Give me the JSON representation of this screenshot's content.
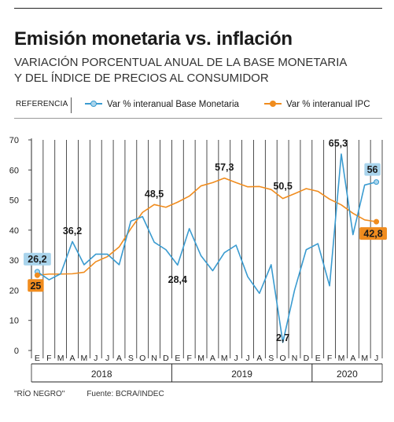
{
  "header": {
    "title": "Emisión monetaria vs. inflación",
    "subtitle_line1": "VARIACIÓN PORCENTUAL ANUAL DE LA BASE MONETARIA",
    "subtitle_line2": "Y DEL ÍNDICE DE PRECIOS AL CONSUMIDOR"
  },
  "legend": {
    "reference_label": "REFERENCIA",
    "items": [
      {
        "label": "Var % interanual Base Monetaria",
        "color": "#3a9bd0",
        "dot": "#a9d4ec"
      },
      {
        "label": "Var % interanual IPC",
        "color": "#f08c1e",
        "dot": "#f08c1e"
      }
    ]
  },
  "footer": {
    "credit": "\"RÍO NEGRO\"",
    "source": "Fuente: BCRA/INDEC"
  },
  "chart_data": {
    "type": "line",
    "ylim": [
      0,
      70
    ],
    "yticks": [
      0,
      10,
      20,
      30,
      40,
      50,
      60,
      70
    ],
    "grid": "vertical lines at each month",
    "categories": [
      "E",
      "F",
      "M",
      "A",
      "M",
      "J",
      "J",
      "A",
      "S",
      "O",
      "N",
      "D",
      "E",
      "F",
      "M",
      "A",
      "M",
      "J",
      "J",
      "A",
      "S",
      "O",
      "N",
      "D",
      "E",
      "F",
      "M",
      "A",
      "M",
      "J"
    ],
    "years": [
      {
        "label": "2018",
        "start": 0,
        "end": 11
      },
      {
        "label": "2019",
        "start": 12,
        "end": 23
      },
      {
        "label": "2020",
        "start": 24,
        "end": 29
      }
    ],
    "series": [
      {
        "name": "Var % interanual Base Monetaria",
        "color": "#3a9bd0",
        "values": [
          26.2,
          23.5,
          25.5,
          36.2,
          28.5,
          32.0,
          32.0,
          28.5,
          43.0,
          44.5,
          36.0,
          33.5,
          28.4,
          40.5,
          31.5,
          26.5,
          32.5,
          35.0,
          24.5,
          19.0,
          28.5,
          2.7,
          20.0,
          33.5,
          35.5,
          21.5,
          65.3,
          38.5,
          55.0,
          56.0
        ]
      },
      {
        "name": "Var % interanual IPC",
        "color": "#f08c1e",
        "values": [
          25.0,
          25.4,
          25.4,
          25.5,
          26.0,
          29.5,
          31.2,
          34.4,
          40.5,
          45.9,
          48.5,
          47.6,
          49.3,
          51.3,
          54.7,
          55.8,
          57.3,
          55.8,
          54.4,
          54.5,
          53.5,
          50.5,
          52.1,
          53.8,
          52.9,
          50.3,
          48.4,
          45.6,
          43.4,
          42.8
        ]
      }
    ],
    "annotations": [
      {
        "series": 0,
        "index": 0,
        "text": "26,2",
        "boxed": true
      },
      {
        "series": 1,
        "index": 0,
        "text": "25",
        "boxed": true
      },
      {
        "series": 0,
        "index": 3,
        "text": "36,2",
        "boxed": false
      },
      {
        "series": 1,
        "index": 10,
        "text": "48,5",
        "boxed": false
      },
      {
        "series": 0,
        "index": 12,
        "text": "28,4",
        "boxed": false
      },
      {
        "series": 1,
        "index": 16,
        "text": "57,3",
        "boxed": false
      },
      {
        "series": 1,
        "index": 21,
        "text": "50,5",
        "boxed": false
      },
      {
        "series": 0,
        "index": 21,
        "text": "2,7",
        "boxed": false
      },
      {
        "series": 0,
        "index": 26,
        "text": "65,3",
        "boxed": false
      },
      {
        "series": 0,
        "index": 29,
        "text": "56",
        "boxed": true
      },
      {
        "series": 1,
        "index": 29,
        "text": "42,8",
        "boxed": true
      }
    ]
  }
}
